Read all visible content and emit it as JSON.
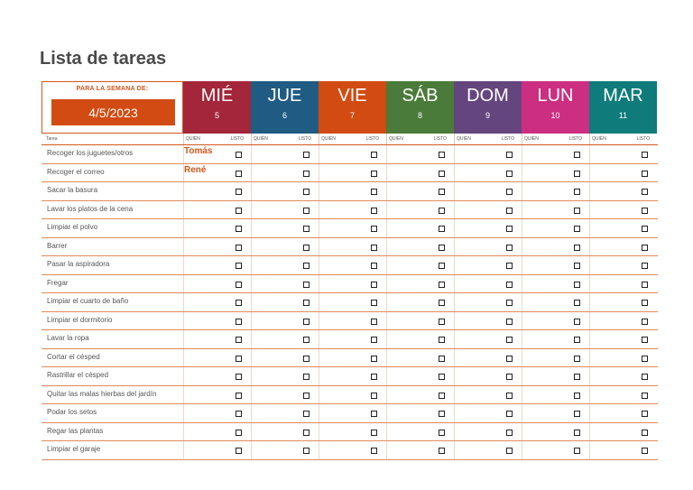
{
  "title": "Lista de tareas",
  "week": {
    "label": "PARA LA SEMANA DE:",
    "date": "4/5/2023"
  },
  "days": [
    {
      "name": "MIÉ",
      "num": "5",
      "color": "#a3263a"
    },
    {
      "name": "JUE",
      "num": "6",
      "color": "#1f5b82"
    },
    {
      "name": "VIE",
      "num": "7",
      "color": "#d14b12"
    },
    {
      "name": "SÁB",
      "num": "8",
      "color": "#4a7b3a"
    },
    {
      "name": "DOM",
      "num": "9",
      "color": "#65457e"
    },
    {
      "name": "LUN",
      "num": "10",
      "color": "#cc2f82"
    },
    {
      "name": "MAR",
      "num": "11",
      "color": "#0f7b7b"
    }
  ],
  "columns": {
    "task": "Tarea",
    "who": "QUIÉN",
    "done": "LISTO"
  },
  "tasks": [
    {
      "name": "Recoger los juguetes/otros",
      "who": "Tomás"
    },
    {
      "name": "Recoger el correo",
      "who": "René"
    },
    {
      "name": "Sacar la basura",
      "who": ""
    },
    {
      "name": "Lavar los platos de la cena",
      "who": ""
    },
    {
      "name": "Limpiar el polvo",
      "who": ""
    },
    {
      "name": "Barrer",
      "who": ""
    },
    {
      "name": "Pasar la aspiradora",
      "who": ""
    },
    {
      "name": "Fregar",
      "who": ""
    },
    {
      "name": "Limpiar el cuarto de baño",
      "who": ""
    },
    {
      "name": "Limpiar el dormitorio",
      "who": ""
    },
    {
      "name": "Lavar la ropa",
      "who": ""
    },
    {
      "name": "Cortar el césped",
      "who": ""
    },
    {
      "name": "Rastrillar el césped",
      "who": ""
    },
    {
      "name": "Quitar las malas hierbas del jardín",
      "who": ""
    },
    {
      "name": "Podar los setos",
      "who": ""
    },
    {
      "name": "Regar las plantas",
      "who": ""
    },
    {
      "name": "Limpiar el garaje",
      "who": ""
    }
  ]
}
